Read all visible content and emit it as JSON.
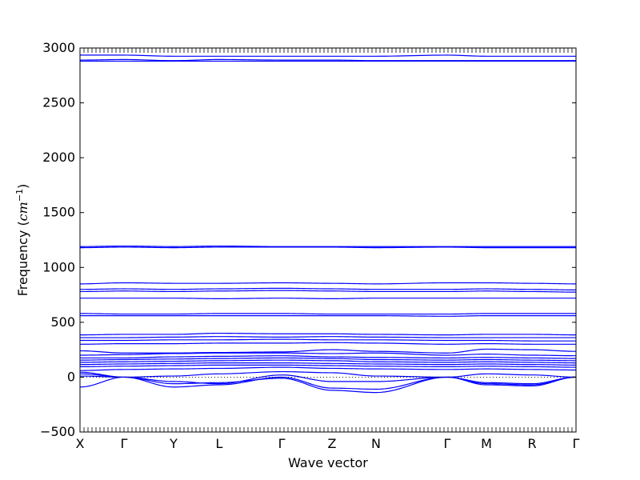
{
  "chart_data": {
    "type": "line",
    "title": "",
    "xlabel": "Wave vector",
    "ylabel": {
      "prefix": "Frequency (",
      "unit_base": "cm",
      "unit_exp": "−1",
      "suffix": ")"
    },
    "ylim": [
      -500,
      3000
    ],
    "yticks": [
      -500,
      0,
      500,
      1000,
      1500,
      2000,
      2500,
      3000
    ],
    "xlim": [
      0,
      1
    ],
    "high_symmetry_points": [
      {
        "label": "X",
        "x": 0.0
      },
      {
        "label": "Γ",
        "x": 0.0887
      },
      {
        "label": "Y",
        "x": 0.1887
      },
      {
        "label": "L",
        "x": 0.2806
      },
      {
        "label": "Γ",
        "x": 0.4065
      },
      {
        "label": "Z",
        "x": 0.5081
      },
      {
        "label": "N",
        "x": 0.5968
      },
      {
        "label": "Γ",
        "x": 0.7403
      },
      {
        "label": "M",
        "x": 0.8194
      },
      {
        "label": "R",
        "x": 0.9113
      },
      {
        "label": "Γ",
        "x": 1.0
      }
    ],
    "zero_reference_line": 0,
    "grid": false,
    "legend": "none",
    "series_color": "#0000ff",
    "node_x": [
      0.0,
      0.0887,
      0.1887,
      0.2806,
      0.4065,
      0.5081,
      0.5968,
      0.7403,
      0.8194,
      0.9113,
      1.0
    ],
    "series": [
      {
        "values": [
          2935,
          2935,
          2925,
          2925,
          2925,
          2925,
          2925,
          2935,
          2925,
          2925,
          2925
        ]
      },
      {
        "values": [
          2890,
          2895,
          2885,
          2895,
          2890,
          2890,
          2885,
          2885,
          2885,
          2885,
          2885
        ]
      },
      {
        "values": [
          2880,
          2880,
          2880,
          2880,
          2880,
          2880,
          2880,
          2880,
          2880,
          2880,
          2880
        ]
      },
      {
        "values": [
          1190,
          1195,
          1190,
          1195,
          1190,
          1190,
          1190,
          1190,
          1190,
          1190,
          1190
        ]
      },
      {
        "values": [
          1180,
          1185,
          1180,
          1185,
          1185,
          1185,
          1180,
          1185,
          1180,
          1180,
          1180
        ]
      },
      {
        "values": [
          850,
          860,
          855,
          855,
          860,
          855,
          850,
          860,
          860,
          855,
          850
        ]
      },
      {
        "values": [
          800,
          805,
          800,
          805,
          810,
          805,
          800,
          800,
          805,
          800,
          795
        ]
      },
      {
        "values": [
          780,
          785,
          780,
          785,
          790,
          785,
          780,
          780,
          785,
          780,
          775
        ]
      },
      {
        "values": [
          720,
          720,
          720,
          715,
          720,
          715,
          720,
          720,
          720,
          720,
          720
        ]
      },
      {
        "values": [
          580,
          575,
          575,
          580,
          580,
          575,
          575,
          575,
          580,
          580,
          580
        ]
      },
      {
        "values": [
          560,
          560,
          560,
          560,
          560,
          560,
          560,
          555,
          560,
          560,
          560
        ]
      },
      {
        "values": [
          385,
          390,
          390,
          400,
          395,
          395,
          390,
          385,
          390,
          390,
          385
        ]
      },
      {
        "values": [
          360,
          360,
          365,
          370,
          365,
          370,
          365,
          360,
          360,
          360,
          360
        ]
      },
      {
        "values": [
          335,
          335,
          340,
          340,
          345,
          340,
          340,
          335,
          335,
          330,
          330
        ]
      },
      {
        "values": [
          300,
          305,
          305,
          310,
          310,
          315,
          310,
          300,
          305,
          300,
          300
        ]
      },
      {
        "values": [
          240,
          220,
          220,
          225,
          230,
          250,
          235,
          220,
          255,
          250,
          235
        ]
      },
      {
        "values": [
          200,
          205,
          215,
          220,
          220,
          215,
          220,
          200,
          210,
          200,
          195
        ]
      },
      {
        "values": [
          175,
          175,
          185,
          190,
          195,
          185,
          180,
          175,
          180,
          175,
          170
        ]
      },
      {
        "values": [
          155,
          160,
          165,
          170,
          175,
          170,
          160,
          155,
          160,
          155,
          150
        ]
      },
      {
        "values": [
          135,
          140,
          145,
          150,
          155,
          150,
          140,
          135,
          140,
          135,
          130
        ]
      },
      {
        "values": [
          115,
          120,
          125,
          130,
          130,
          125,
          120,
          115,
          120,
          115,
          110
        ]
      },
      {
        "values": [
          95,
          100,
          105,
          110,
          110,
          105,
          100,
          95,
          100,
          95,
          90
        ]
      },
      {
        "values": [
          60,
          70,
          75,
          80,
          90,
          80,
          75,
          70,
          75,
          70,
          65
        ]
      },
      {
        "values": [
          -90,
          0,
          10,
          30,
          50,
          40,
          10,
          0,
          30,
          20,
          0
        ]
      },
      {
        "values": [
          45,
          0,
          -40,
          -60,
          20,
          -40,
          -40,
          0,
          -60,
          -70,
          0
        ]
      },
      {
        "values": [
          30,
          0,
          -90,
          -70,
          0,
          -100,
          -110,
          0,
          -70,
          -80,
          0
        ]
      },
      {
        "values": [
          10,
          0,
          -60,
          -50,
          -10,
          -120,
          -140,
          0,
          -50,
          -60,
          0
        ]
      }
    ]
  }
}
